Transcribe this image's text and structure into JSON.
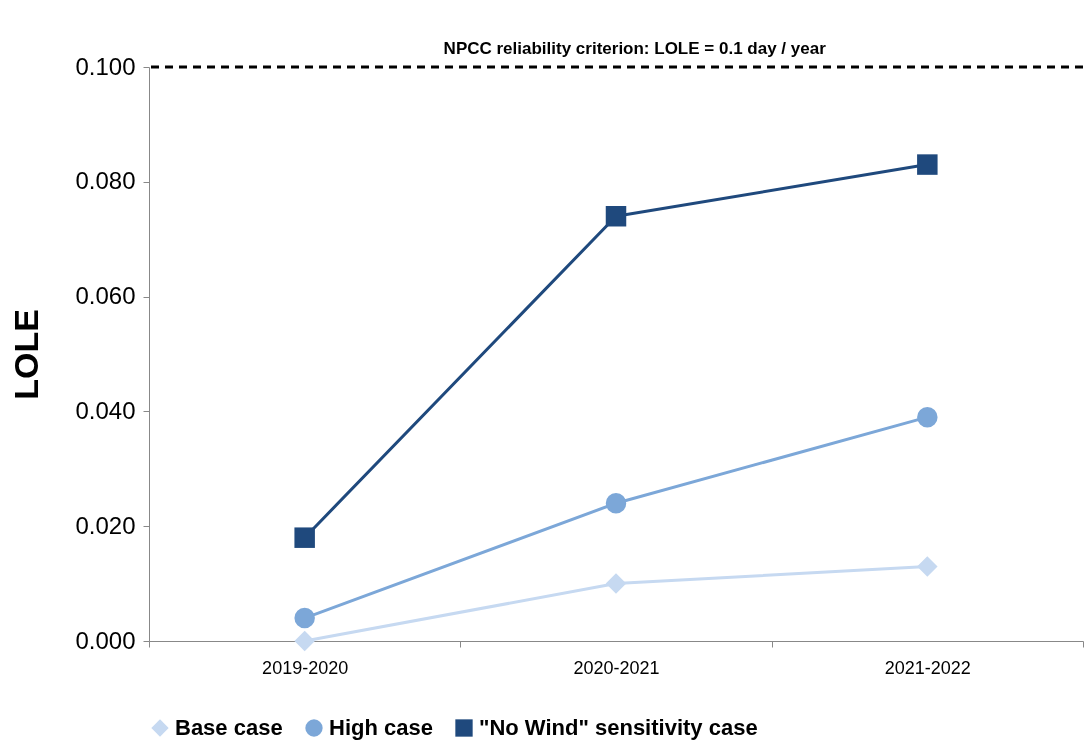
{
  "chart_data": {
    "type": "line",
    "ylabel": "LOLE",
    "categories": [
      "2019-2020",
      "2020-2021",
      "2021-2022"
    ],
    "series": [
      {
        "name": "Base case",
        "color": "#c6d9f1",
        "marker": "diamond",
        "values": [
          0.0,
          0.01,
          0.013
        ]
      },
      {
        "name": "High case",
        "color": "#7ca7d8",
        "marker": "circle",
        "values": [
          0.004,
          0.024,
          0.039
        ]
      },
      {
        "name": "\"No Wind\" sensitivity case",
        "color": "#1f497d",
        "marker": "square",
        "values": [
          0.018,
          0.074,
          0.083
        ]
      }
    ],
    "ylim": [
      0,
      0.1
    ],
    "yticks": [
      {
        "value": 0,
        "label": "0.000"
      },
      {
        "value": 0.02,
        "label": "0.020"
      },
      {
        "value": 0.04,
        "label": "0.040"
      },
      {
        "value": 0.06,
        "label": "0.060"
      },
      {
        "value": 0.08,
        "label": "0.080"
      },
      {
        "value": 0.1,
        "label": "0.100"
      }
    ],
    "ref_lines": [
      {
        "axis": "y",
        "value": 0.1,
        "label": "NPCC reliability criterion: LOLE = 0.1 day / year",
        "color": "#000000",
        "line_style": "dashed"
      }
    ],
    "grid": false,
    "legend": "bottom"
  }
}
